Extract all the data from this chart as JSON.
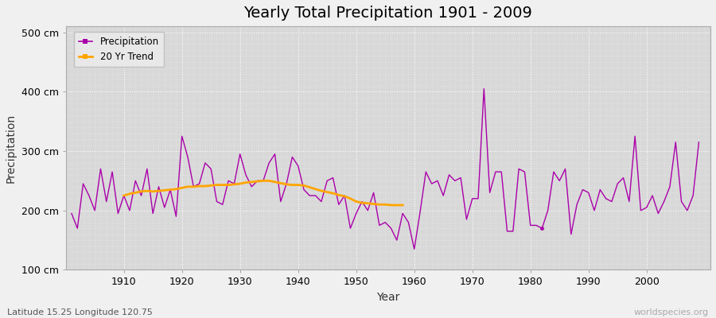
{
  "title": "Yearly Total Precipitation 1901 - 2009",
  "xlabel": "Year",
  "ylabel": "Precipitation",
  "lat_lon_label": "Latitude 15.25 Longitude 120.75",
  "watermark": "worldspecies.org",
  "ylim": [
    100,
    510
  ],
  "yticks": [
    100,
    200,
    300,
    400,
    500
  ],
  "ytick_labels": [
    "100 cm",
    "200 cm",
    "300 cm",
    "400 cm",
    "500 cm"
  ],
  "xticks": [
    1910,
    1920,
    1930,
    1940,
    1950,
    1960,
    1970,
    1980,
    1990,
    2000
  ],
  "xlim": [
    1900,
    2011
  ],
  "years": [
    1901,
    1902,
    1903,
    1904,
    1905,
    1906,
    1907,
    1908,
    1909,
    1910,
    1911,
    1912,
    1913,
    1914,
    1915,
    1916,
    1917,
    1918,
    1919,
    1920,
    1921,
    1922,
    1923,
    1924,
    1925,
    1926,
    1927,
    1928,
    1929,
    1930,
    1931,
    1932,
    1933,
    1934,
    1935,
    1936,
    1937,
    1938,
    1939,
    1940,
    1941,
    1942,
    1943,
    1944,
    1945,
    1946,
    1947,
    1948,
    1949,
    1950,
    1951,
    1952,
    1953,
    1954,
    1955,
    1956,
    1957,
    1958,
    1959,
    1960,
    1961,
    1962,
    1963,
    1964,
    1965,
    1966,
    1967,
    1968,
    1969,
    1970,
    1971,
    1972,
    1973,
    1974,
    1975,
    1976,
    1977,
    1978,
    1979,
    1980,
    1981,
    1982,
    1983,
    1984,
    1985,
    1986,
    1987,
    1988,
    1989,
    1990,
    1991,
    1992,
    1993,
    1994,
    1995,
    1996,
    1997,
    1998,
    1999,
    2000,
    2001,
    2002,
    2003,
    2004,
    2005,
    2006,
    2007,
    2008,
    2009
  ],
  "precipitation": [
    195,
    170,
    245,
    225,
    200,
    270,
    215,
    265,
    195,
    225,
    200,
    250,
    225,
    270,
    195,
    240,
    205,
    235,
    190,
    325,
    290,
    240,
    245,
    280,
    270,
    215,
    210,
    250,
    245,
    295,
    260,
    240,
    250,
    250,
    280,
    295,
    215,
    245,
    290,
    275,
    235,
    225,
    225,
    215,
    250,
    255,
    210,
    225,
    170,
    195,
    215,
    200,
    230,
    175,
    180,
    170,
    150,
    195,
    180,
    135,
    197,
    265,
    245,
    250,
    225,
    260,
    250,
    255,
    185,
    220,
    220,
    405,
    230,
    265,
    265,
    165,
    165,
    270,
    265,
    175,
    175,
    170,
    200,
    265,
    250,
    270,
    160,
    210,
    235,
    230,
    200,
    235,
    220,
    215,
    245,
    255,
    215,
    325,
    200,
    205,
    225,
    195,
    215,
    240,
    315,
    215,
    200,
    225,
    315
  ],
  "trend_years": [
    1910,
    1911,
    1912,
    1913,
    1914,
    1915,
    1916,
    1917,
    1918,
    1919,
    1920,
    1921,
    1922,
    1923,
    1924,
    1925,
    1926,
    1927,
    1928,
    1929,
    1930,
    1931,
    1932,
    1933,
    1934,
    1935,
    1936,
    1937,
    1938,
    1939,
    1940,
    1941,
    1942,
    1943,
    1944,
    1945,
    1946,
    1947,
    1948,
    1949,
    1950,
    1951,
    1952,
    1953,
    1954,
    1955,
    1956,
    1957,
    1958
  ],
  "trend_values": [
    225,
    228,
    230,
    232,
    233,
    232,
    233,
    234,
    235,
    236,
    238,
    240,
    240,
    241,
    241,
    242,
    243,
    243,
    243,
    244,
    245,
    247,
    248,
    249,
    250,
    250,
    248,
    246,
    244,
    243,
    243,
    242,
    239,
    236,
    233,
    231,
    229,
    226,
    224,
    220,
    215,
    213,
    212,
    211,
    210,
    210,
    209,
    209,
    209
  ],
  "isolated_dot_x": 1982,
  "isolated_dot_y": 170,
  "precipitation_color": "#aa00aa",
  "trend_color": "#FFA500",
  "figure_bg_color": "#f0f0f0",
  "plot_bg_color": "#d8d8d8",
  "grid_color": "#ffffff",
  "title_fontsize": 14,
  "axis_label_fontsize": 10,
  "tick_fontsize": 9,
  "footer_fontsize": 8
}
